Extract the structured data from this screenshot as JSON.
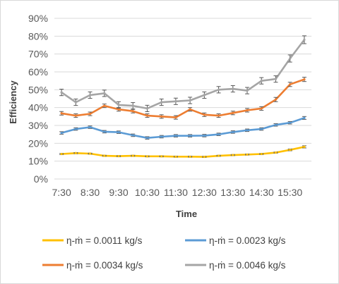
{
  "chart_data": {
    "type": "line",
    "xlabel": "Time",
    "ylabel": "Efficiency",
    "ylim": [
      0,
      0.9
    ],
    "y_ticks": [
      "0%",
      "10%",
      "20%",
      "30%",
      "40%",
      "50%",
      "60%",
      "70%",
      "80%",
      "90%"
    ],
    "x_tick_labels": [
      "7:30",
      "8:30",
      "9:30",
      "10:30",
      "11:30",
      "12:30",
      "13:30",
      "14:30",
      "15:30"
    ],
    "x": [
      "7:30",
      "8:00",
      "8:30",
      "9:00",
      "9:30",
      "10:00",
      "10:30",
      "11:00",
      "11:30",
      "12:00",
      "12:30",
      "13:00",
      "13:30",
      "14:00",
      "14:30",
      "15:00",
      "15:30",
      "16:00"
    ],
    "grid": true,
    "error_bars": true,
    "legend_position": "bottom",
    "series": [
      {
        "name": "η-ṁ  = 0.0011 kg/s",
        "color": "#ffc000",
        "values": [
          0.14,
          0.145,
          0.142,
          0.13,
          0.128,
          0.13,
          0.127,
          0.127,
          0.125,
          0.125,
          0.124,
          0.13,
          0.134,
          0.137,
          0.14,
          0.148,
          0.163,
          0.18
        ],
        "error": [
          0.003,
          0.003,
          0.003,
          0.003,
          0.003,
          0.003,
          0.003,
          0.003,
          0.003,
          0.003,
          0.003,
          0.003,
          0.003,
          0.003,
          0.003,
          0.003,
          0.005,
          0.006
        ]
      },
      {
        "name": "η-ṁ  = 0.0023 kg/s",
        "color": "#5b9bd5",
        "values": [
          0.258,
          0.28,
          0.29,
          0.265,
          0.262,
          0.245,
          0.23,
          0.237,
          0.242,
          0.242,
          0.243,
          0.25,
          0.263,
          0.273,
          0.28,
          0.303,
          0.315,
          0.342
        ],
        "error": [
          0.007,
          0.007,
          0.007,
          0.007,
          0.007,
          0.007,
          0.007,
          0.007,
          0.007,
          0.007,
          0.007,
          0.007,
          0.007,
          0.007,
          0.007,
          0.007,
          0.007,
          0.008
        ]
      },
      {
        "name": "η-ṁ = 0.0034 kg/s",
        "color": "#ed7d31",
        "values": [
          0.368,
          0.355,
          0.365,
          0.41,
          0.39,
          0.38,
          0.355,
          0.35,
          0.345,
          0.39,
          0.36,
          0.355,
          0.37,
          0.385,
          0.395,
          0.445,
          0.53,
          0.558
        ],
        "error": [
          0.01,
          0.01,
          0.01,
          0.01,
          0.01,
          0.01,
          0.01,
          0.01,
          0.01,
          0.01,
          0.01,
          0.01,
          0.01,
          0.01,
          0.01,
          0.012,
          0.012,
          0.012
        ]
      },
      {
        "name": "η-ṁ = 0.0046 kg/s",
        "color": "#a5a5a5",
        "values": [
          0.485,
          0.43,
          0.47,
          0.48,
          0.415,
          0.41,
          0.395,
          0.43,
          0.435,
          0.44,
          0.47,
          0.5,
          0.505,
          0.495,
          0.55,
          0.56,
          0.675,
          0.78
        ],
        "error": [
          0.018,
          0.018,
          0.018,
          0.018,
          0.018,
          0.018,
          0.018,
          0.018,
          0.018,
          0.018,
          0.018,
          0.018,
          0.018,
          0.018,
          0.018,
          0.018,
          0.02,
          0.022
        ]
      }
    ]
  }
}
